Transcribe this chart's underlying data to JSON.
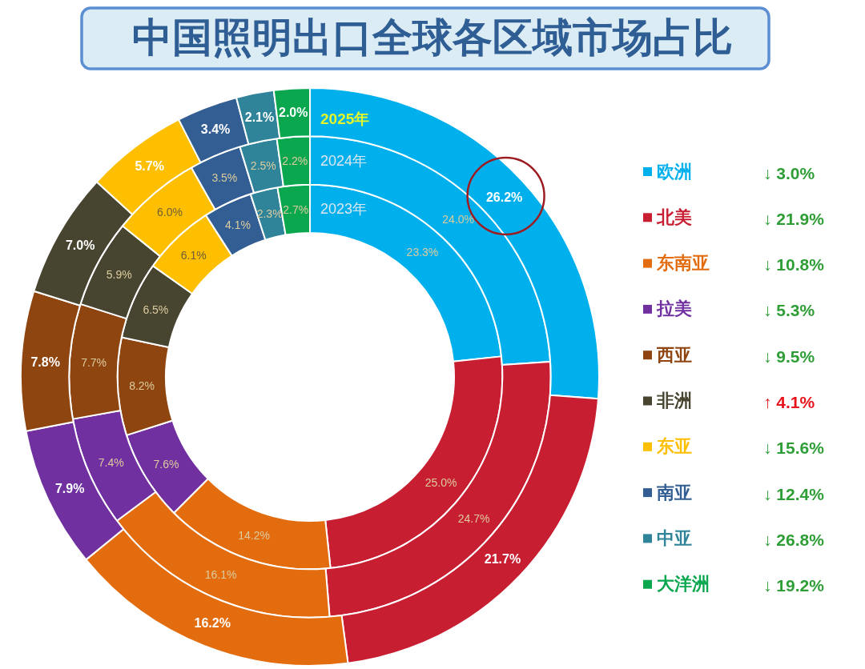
{
  "chart_data": {
    "type": "donut",
    "title": "中国照明出口全球各区域市场占比",
    "categories": [
      "欧洲",
      "北美",
      "东南亚",
      "拉美",
      "西亚",
      "非洲",
      "东亚",
      "南亚",
      "中亚",
      "大洋洲"
    ],
    "colors": [
      "#00b0ec",
      "#c81e32",
      "#e36c0e",
      "#7030a0",
      "#8e4510",
      "#474430",
      "#fdbf00",
      "#325e93",
      "#2f8499",
      "#0aa74f"
    ],
    "series": [
      {
        "name": "2023年",
        "values": [
          23.3,
          25.0,
          14.2,
          7.6,
          8.2,
          6.5,
          6.1,
          4.1,
          2.3,
          2.7
        ],
        "value_labels": [
          "23.3%",
          "25.0%",
          "14.2%",
          "7.6%",
          "8.2%",
          "6.5%",
          "6.1%",
          "4.1%",
          "2.3%",
          "2.7%"
        ]
      },
      {
        "name": "2024年",
        "values": [
          24.0,
          24.7,
          16.1,
          7.4,
          7.7,
          5.9,
          6.0,
          3.5,
          2.5,
          2.2
        ],
        "value_labels": [
          "24.0%",
          "24.7%",
          "16.1%",
          "7.4%",
          "7.7%",
          "5.9%",
          "6.0%",
          "3.5%",
          "2.5%",
          "2.2%"
        ]
      },
      {
        "name": "2025年",
        "values": [
          26.2,
          21.7,
          16.2,
          7.9,
          7.8,
          7.0,
          5.7,
          3.4,
          2.1,
          2.0
        ],
        "value_labels": [
          "26.2%",
          "21.7%",
          "16.2%",
          "7.9%",
          "7.8%",
          "7.0%",
          "5.7%",
          "3.4%",
          "2.1%",
          "2.0%"
        ]
      }
    ],
    "legend": "right",
    "annotations": [
      "↓ 3.0%",
      "↓ 21.9%",
      "↓ 10.8%",
      "↓ 5.3%",
      "↓ 9.5%",
      "↑ 4.1%",
      "↓ 15.6%",
      "↓ 12.4%",
      "↓ 26.8%",
      "↓ 19.2%"
    ]
  }
}
